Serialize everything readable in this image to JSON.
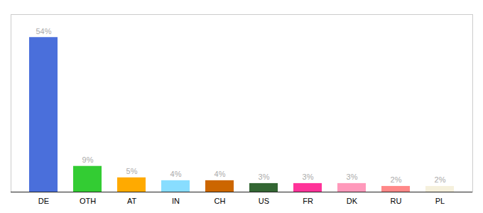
{
  "chart_data": {
    "type": "bar",
    "categories": [
      "DE",
      "OTH",
      "AT",
      "IN",
      "CH",
      "US",
      "FR",
      "DK",
      "RU",
      "PL"
    ],
    "values": [
      54,
      9,
      5,
      4,
      4,
      3,
      3,
      3,
      2,
      2
    ],
    "value_labels": [
      "54%",
      "9%",
      "5%",
      "4%",
      "4%",
      "3%",
      "3%",
      "3%",
      "2%",
      "2%"
    ],
    "colors": [
      "#4a6fdb",
      "#33cc33",
      "#ffaa00",
      "#88ddff",
      "#cc6600",
      "#336633",
      "#ff3399",
      "#ff99bb",
      "#ff8888",
      "#f5f0dc"
    ],
    "ylim": [
      0,
      62
    ],
    "grid": false,
    "data_labels": true,
    "tick_labels": "x"
  }
}
